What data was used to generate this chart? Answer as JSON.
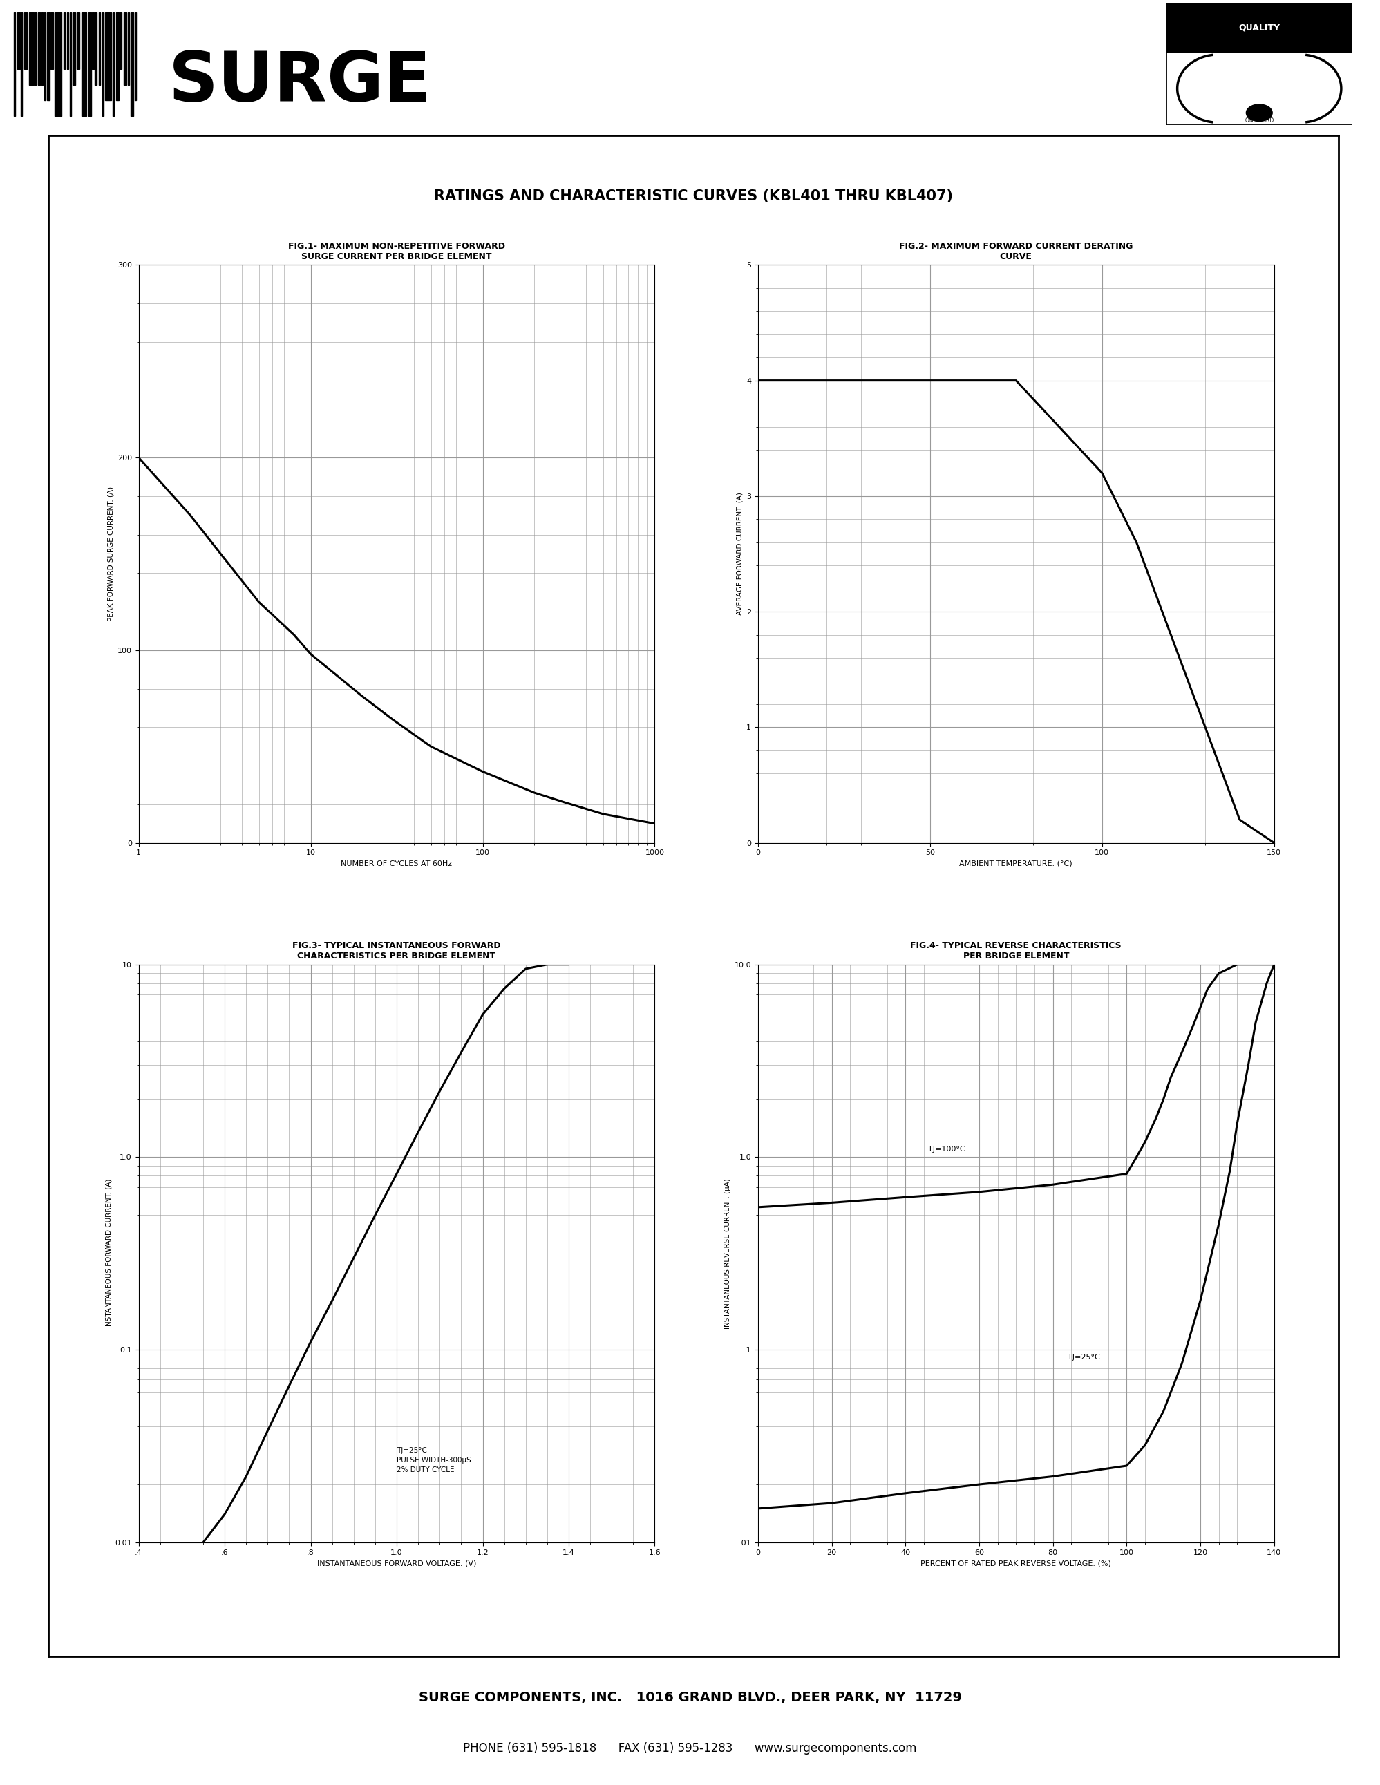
{
  "page_title": "RATINGS AND CHARACTERISTIC CURVES (KBL401 THRU KBL407)",
  "fig1_title1": "FIG.1- MAXIMUM NON-REPETITIVE FORWARD",
  "fig1_title2": "SURGE CURRENT PER BRIDGE ELEMENT",
  "fig1_xlabel": "NUMBER OF CYCLES AT 60Hz",
  "fig1_ylabel": "PEAK FORWARD SURGE CURRENT. (A)",
  "fig1_xlim": [
    1,
    1000
  ],
  "fig1_ylim": [
    0,
    300
  ],
  "fig1_yticks": [
    0,
    100,
    200,
    300
  ],
  "fig1_curve_x": [
    1,
    2,
    3,
    5,
    8,
    10,
    20,
    30,
    50,
    100,
    200,
    300,
    500,
    1000
  ],
  "fig1_curve_y": [
    200,
    170,
    150,
    125,
    108,
    98,
    76,
    64,
    50,
    37,
    26,
    21,
    15,
    10
  ],
  "fig2_title1": "FIG.2- MAXIMUM FORWARD CURRENT DERATING",
  "fig2_title2": "CURVE",
  "fig2_xlabel": "AMBIENT TEMPERATURE. (°C)",
  "fig2_ylabel": "AVERAGE FORWARD CURRENT. (A)",
  "fig2_xlim": [
    0,
    150
  ],
  "fig2_ylim": [
    0,
    5
  ],
  "fig2_yticks": [
    0,
    1,
    2,
    3,
    4,
    5
  ],
  "fig2_xticks": [
    0,
    50,
    100,
    150
  ],
  "fig2_curve_x": [
    0,
    55,
    75,
    100,
    110,
    120,
    125,
    130,
    135,
    140,
    150
  ],
  "fig2_curve_y": [
    4.0,
    4.0,
    4.0,
    3.2,
    2.6,
    1.8,
    1.4,
    1.0,
    0.6,
    0.2,
    0.0
  ],
  "fig3_title1": "FIG.3- TYPICAL INSTANTANEOUS FORWARD",
  "fig3_title2": "CHARACTERISTICS PER BRIDGE ELEMENT",
  "fig3_xlabel": "INSTANTANEOUS FORWARD VOLTAGE. (V)",
  "fig3_ylabel": "INSTANTANEOUS FORWARD CURRENT. (A)",
  "fig3_xlim": [
    0.4,
    1.6
  ],
  "fig3_ylim_log": [
    0.01,
    10
  ],
  "fig3_xticks": [
    0.4,
    0.6,
    0.8,
    1.0,
    1.2,
    1.4,
    1.6
  ],
  "fig3_xtick_labels": [
    ".4",
    ".6",
    ".8",
    "1.0",
    "1.2",
    "1.4",
    "1.6"
  ],
  "fig3_ytick_labels": [
    "0.01",
    "0.1",
    "1.0",
    "10"
  ],
  "fig3_curve_x": [
    0.55,
    0.6,
    0.65,
    0.7,
    0.75,
    0.8,
    0.85,
    0.9,
    0.95,
    1.0,
    1.05,
    1.1,
    1.15,
    1.2,
    1.25,
    1.3,
    1.35,
    1.4
  ],
  "fig3_curve_y": [
    0.01,
    0.014,
    0.022,
    0.038,
    0.065,
    0.11,
    0.18,
    0.3,
    0.5,
    0.82,
    1.35,
    2.2,
    3.5,
    5.5,
    7.5,
    9.5,
    10.0,
    10.0
  ],
  "fig3_label": "Tj=25°C\nPULSE WIDTH-300μS\n2% DUTY CYCLE",
  "fig4_title1": "FIG.4- TYPICAL REVERSE CHARACTERISTICS",
  "fig4_title2": "PER BRIDGE ELEMENT",
  "fig4_xlabel": "PERCENT OF RATED PEAK REVERSE VOLTAGE. (%)",
  "fig4_ylabel": "INSTANTANEOUS REVERSE CURRENT. (μA)",
  "fig4_xlim": [
    0,
    140
  ],
  "fig4_ylim_log": [
    0.01,
    10.0
  ],
  "fig4_ytick_labels": [
    ".01",
    ".1",
    "1.0",
    "10.0"
  ],
  "fig4_xticks": [
    0,
    20,
    40,
    60,
    80,
    100,
    120,
    140
  ],
  "fig4_curve100_x": [
    0,
    20,
    40,
    60,
    80,
    100,
    102,
    105,
    108,
    110,
    112,
    115,
    118,
    120,
    122,
    125,
    130,
    135,
    140
  ],
  "fig4_curve100_y": [
    0.55,
    0.58,
    0.62,
    0.66,
    0.72,
    0.82,
    0.95,
    1.2,
    1.6,
    2.0,
    2.6,
    3.5,
    4.8,
    6.0,
    7.5,
    9.0,
    10.0,
    10.0,
    10.0
  ],
  "fig4_curve25_x": [
    0,
    20,
    40,
    60,
    80,
    100,
    105,
    110,
    115,
    120,
    125,
    128,
    130,
    133,
    135,
    138,
    140
  ],
  "fig4_curve25_y": [
    0.015,
    0.016,
    0.018,
    0.02,
    0.022,
    0.025,
    0.032,
    0.048,
    0.085,
    0.18,
    0.45,
    0.85,
    1.5,
    3.0,
    5.0,
    8.0,
    10.0
  ],
  "fig4_label100": "TJ=100°C",
  "fig4_label25": "TJ=25°C",
  "company_line1": "SURGE COMPONENTS, INC.   1016 GRAND BLVD., DEER PARK, NY  11729",
  "company_line2": "PHONE (631) 595-1818      FAX (631) 595-1283      www.surgecomponents.com",
  "bg_color": "#ffffff",
  "curve_color": "#000000",
  "grid_color": "#999999"
}
